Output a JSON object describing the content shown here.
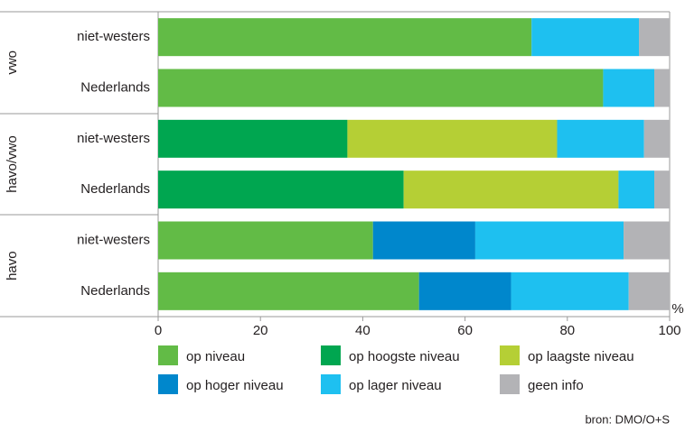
{
  "chart_data": {
    "type": "stacked-barh",
    "groups": [
      "vwo",
      "havo/vwo",
      "havo"
    ],
    "categories": [
      "niet-westers",
      "Nederlands",
      "niet-westers",
      "Nederlands",
      "niet-westers",
      "Nederlands"
    ],
    "series": [
      {
        "name": "op niveau",
        "color": "#62bb46",
        "values": [
          73,
          87,
          null,
          null,
          42,
          51
        ]
      },
      {
        "name": "op hoogste niveau",
        "color": "#00a650",
        "values": [
          null,
          null,
          37,
          48,
          null,
          null
        ]
      },
      {
        "name": "op laagste niveau",
        "color": "#b5cf35",
        "values": [
          null,
          null,
          41,
          42,
          null,
          null
        ]
      },
      {
        "name": "op hoger niveau",
        "color": "#0087cc",
        "values": [
          null,
          null,
          null,
          null,
          20,
          18
        ]
      },
      {
        "name": "op lager niveau",
        "color": "#1ec0f0",
        "values": [
          21,
          10,
          17,
          7,
          29,
          23
        ]
      },
      {
        "name": "geen info",
        "color": "#b3b3b6",
        "values": [
          6,
          3,
          5,
          3,
          9,
          8
        ]
      }
    ],
    "xlim": [
      0,
      100
    ],
    "xticks": [
      0,
      20,
      40,
      60,
      80,
      100
    ],
    "x_unit": "%",
    "source": "bron: DMO/O+S"
  }
}
